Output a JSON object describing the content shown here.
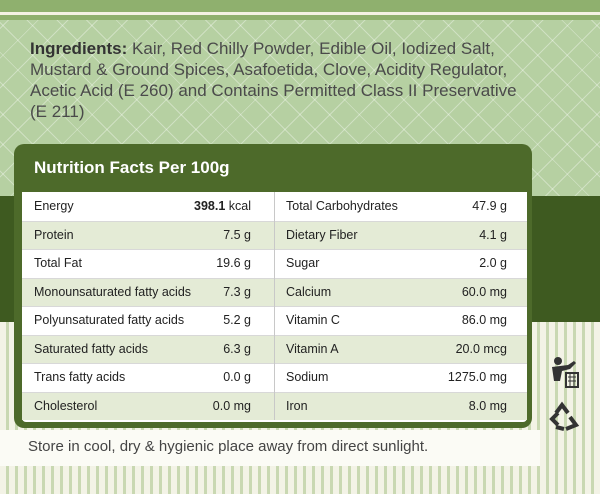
{
  "ingredients": {
    "label": "Ingredients:",
    "text": "Kair, Red Chilly Powder, Edible Oil, Iodized Salt, Mustard & Ground Spices, Asafoetida, Clove, Acidity Regulator, Acetic Acid (E 260) and Contains Permitted Class II Preservative (E 211)"
  },
  "nutrition": {
    "title": "Nutrition Facts Per 100g",
    "energy": {
      "label": "Energy",
      "amount": "398.1",
      "unit": "kcal"
    },
    "rows": [
      [
        "Total Carbohydrates",
        "47.9 g"
      ],
      [
        "Protein",
        "7.5 g",
        "Dietary Fiber",
        "4.1 g"
      ],
      [
        "Total Fat",
        "19.6 g",
        "Sugar",
        "2.0 g"
      ],
      [
        "Monounsaturated fatty acids",
        "7.3 g",
        "Calcium",
        "60.0 mg"
      ],
      [
        "Polyunsaturated fatty acids",
        "5.2 g",
        "Vitamin C",
        "86.0 mg"
      ],
      [
        "Saturated fatty acids",
        "6.3 g",
        "Vitamin A",
        "20.0 mcg"
      ],
      [
        "Trans fatty acids",
        "0.0 g",
        "Sodium",
        "1275.0 mg"
      ],
      [
        "Cholesterol",
        "0.0 mg",
        "Iron",
        "8.0 mg"
      ]
    ]
  },
  "storage": "Store in cool, dry & hygienic place away from direct sunlight."
}
